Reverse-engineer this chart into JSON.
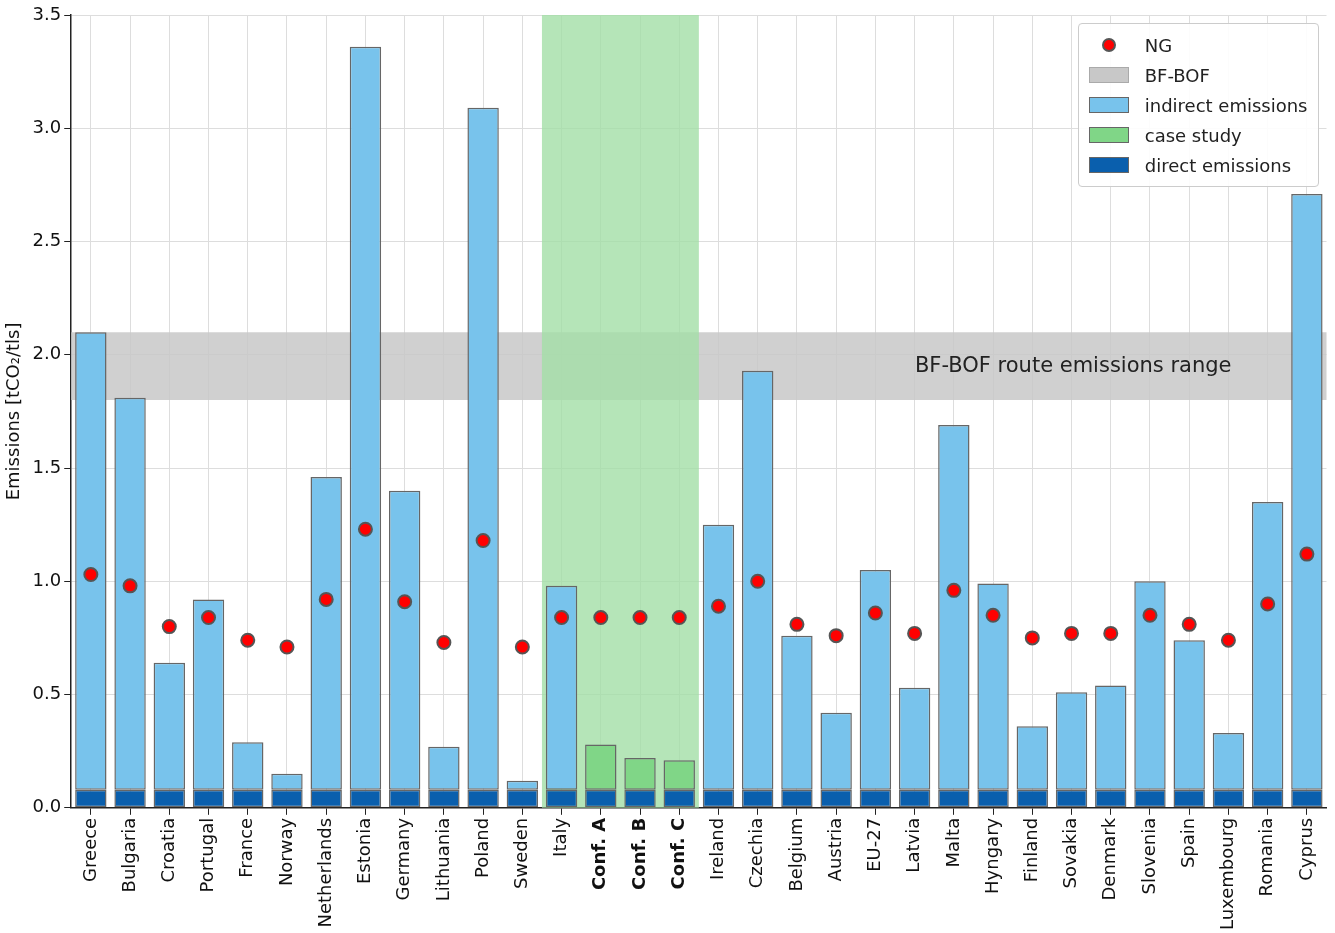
{
  "chart_data": {
    "type": "bar",
    "stacked": true,
    "ylabel": "Emissions [tCO₂/tls]",
    "categories": [
      "Greece",
      "Bulgaria",
      "Croatia",
      "Portugal",
      "France",
      "Norway",
      "Netherlands",
      "Estonia",
      "Germany",
      "Lithuania",
      "Poland",
      "Sweden",
      "Italy",
      "Conf. A",
      "Conf. B",
      "Conf. C",
      "Ireland",
      "Czechia",
      "Belgium",
      "Austria",
      "EU-27",
      "Latvia",
      "Malta",
      "Hyngary",
      "Finland",
      "Sovakia",
      "Denmark",
      "Slovenia",
      "Spain",
      "Luxembourg",
      "Romania",
      "Cyprus"
    ],
    "series": [
      {
        "name": "direct emissions",
        "color": "#0a5fad",
        "values": [
          0.08,
          0.08,
          0.08,
          0.08,
          0.08,
          0.08,
          0.08,
          0.08,
          0.08,
          0.08,
          0.08,
          0.08,
          0.08,
          0.08,
          0.08,
          0.08,
          0.08,
          0.08,
          0.08,
          0.08,
          0.08,
          0.08,
          0.08,
          0.08,
          0.08,
          0.08,
          0.08,
          0.08,
          0.08,
          0.08,
          0.08,
          0.08
        ]
      },
      {
        "name": "case study",
        "color": "#80d687",
        "values": [
          null,
          null,
          null,
          null,
          null,
          null,
          null,
          null,
          null,
          null,
          null,
          null,
          null,
          0.2,
          0.14,
          0.13,
          null,
          null,
          null,
          null,
          null,
          null,
          null,
          null,
          null,
          null,
          null,
          null,
          null,
          null,
          null,
          null
        ]
      },
      {
        "name": "indirect emissions",
        "color": "#78c3ec",
        "values": [
          2.02,
          1.73,
          0.56,
          0.84,
          0.21,
          0.07,
          1.38,
          3.28,
          1.32,
          0.19,
          3.01,
          0.04,
          0.9,
          null,
          null,
          null,
          1.17,
          1.85,
          0.68,
          0.34,
          0.97,
          0.45,
          1.61,
          0.91,
          0.28,
          0.43,
          0.46,
          0.92,
          0.66,
          0.25,
          1.27,
          2.63
        ]
      },
      {
        "name": "NG",
        "type": "scatter",
        "color": "#ff0000",
        "values": [
          1.03,
          0.98,
          0.8,
          0.84,
          0.74,
          0.71,
          0.92,
          1.23,
          0.91,
          0.73,
          1.18,
          0.71,
          0.84,
          0.84,
          0.84,
          0.84,
          0.89,
          1.0,
          0.81,
          0.76,
          0.86,
          0.77,
          0.96,
          0.85,
          0.75,
          0.77,
          0.77,
          0.85,
          0.81,
          0.74,
          0.9,
          1.12
        ]
      }
    ],
    "bands": [
      {
        "axis": "y",
        "from": 1.8,
        "to": 2.1,
        "label": "BF-BOF",
        "color": "#c8c8c8"
      },
      {
        "axis": "x",
        "from": "Italy",
        "to": "Conf. C",
        "color": "#a3dfa6"
      }
    ],
    "annotations": [
      "BF-BOF route emissions range"
    ],
    "ylim": [
      0,
      3.5
    ],
    "yticks": [
      {
        "value": 0,
        "label": "0.0"
      },
      0.5,
      {
        "value": 1,
        "label": "1.0"
      },
      1.5,
      {
        "value": 2,
        "label": "2.0"
      },
      2.5,
      {
        "value": 3,
        "label": "3.0"
      },
      3.5
    ],
    "grid": true,
    "legend": "top right",
    "marker": "circle"
  }
}
